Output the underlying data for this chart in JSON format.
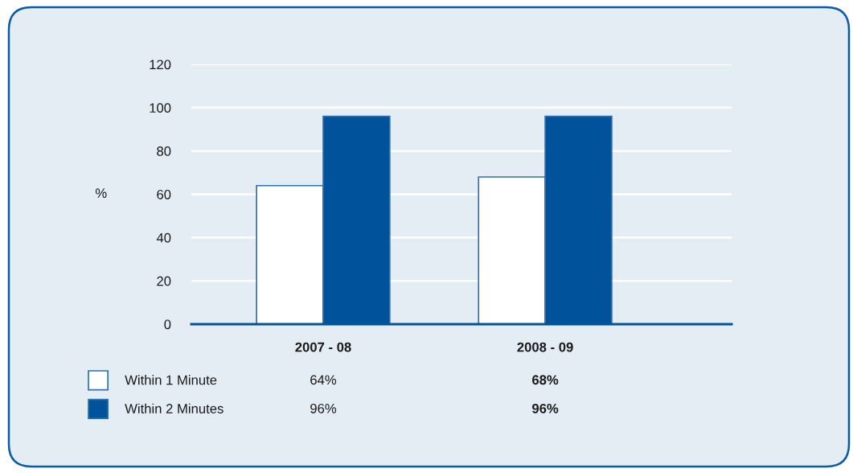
{
  "chart_data": {
    "type": "bar",
    "ylabel": "%",
    "categories": [
      "2007 - 08",
      "2008 - 09"
    ],
    "series": [
      {
        "name": "Within 1 Minute",
        "color": "#ffffff",
        "values": [
          64,
          68
        ],
        "value_labels": [
          "64%",
          "68%"
        ]
      },
      {
        "name": "Within 2 Minutes",
        "color": "#00529b",
        "values": [
          96,
          96
        ],
        "value_labels": [
          "96%",
          "96%"
        ]
      }
    ],
    "ylim": [
      0,
      120
    ],
    "yticks": [
      0,
      20,
      40,
      60,
      80,
      100,
      120
    ],
    "grid": "y",
    "legend": "bottom left"
  }
}
